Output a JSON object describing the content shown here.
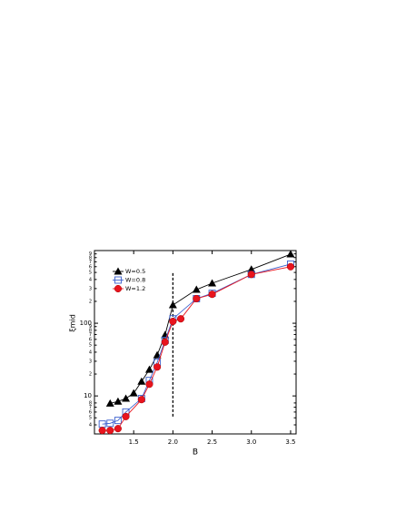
{
  "chart_data": {
    "type": "line",
    "log_y": true,
    "x_label": "B",
    "y_label": "ξmid",
    "xlim": [
      1.0,
      3.57
    ],
    "ylim": [
      3,
      1000
    ],
    "xticks": [
      1.5,
      {
        "value": 2,
        "label": "2.0"
      },
      2.5,
      {
        "value": 3,
        "label": "3.0"
      },
      3.5
    ],
    "yticks": [
      {
        "value": 4,
        "label": "4"
      },
      {
        "value": 5,
        "label": "5"
      },
      {
        "value": 6,
        "label": "6"
      },
      {
        "value": 7,
        "label": "7"
      },
      {
        "value": 8,
        "label": "8"
      },
      10,
      {
        "value": 20,
        "label": "2"
      },
      {
        "value": 30,
        "label": "3"
      },
      {
        "value": 40,
        "label": "4"
      },
      {
        "value": 50,
        "label": "5"
      },
      {
        "value": 60,
        "label": "6"
      },
      {
        "value": 70,
        "label": "7"
      },
      {
        "value": 80,
        "label": "8"
      },
      {
        "value": 90,
        "label": "9"
      },
      100,
      {
        "value": 200,
        "label": "2"
      },
      {
        "value": 300,
        "label": "3"
      },
      {
        "value": 400,
        "label": "4"
      },
      {
        "value": 500,
        "label": "5"
      },
      {
        "value": 600,
        "label": "6"
      },
      {
        "value": 700,
        "label": "7"
      },
      {
        "value": 800,
        "label": "8"
      },
      {
        "value": 900,
        "label": "9"
      }
    ],
    "legend": "upper left",
    "series": [
      {
        "name": "W=0.5",
        "color": "#000000",
        "marker": "triangle",
        "x": [
          1.2,
          1.3,
          1.4,
          1.5,
          1.6,
          1.7,
          1.8,
          1.9,
          2.0,
          2.3,
          2.5,
          3.0,
          3.5
        ],
        "values": [
          7.9,
          8.4,
          9.2,
          10.9,
          15.8,
          23,
          36.5,
          69,
          178,
          290,
          355,
          550,
          890
        ]
      },
      {
        "name": "W=0.8",
        "color": "#3a5fcd",
        "marker": "square",
        "x": [
          1.1,
          1.2,
          1.3,
          1.4,
          1.6,
          1.7,
          1.8,
          1.9,
          2.0,
          2.3,
          2.5,
          3.0,
          3.5
        ],
        "values": [
          4.1,
          4.2,
          4.6,
          6.0,
          9.2,
          16.3,
          29,
          58,
          115,
          218,
          258,
          470,
          650
        ]
      },
      {
        "name": "W=1.2",
        "color": "#e8141e",
        "marker": "circle",
        "x": [
          1.1,
          1.2,
          1.3,
          1.4,
          1.6,
          1.7,
          1.8,
          1.9,
          2.0,
          2.1,
          2.3,
          2.5,
          3.0,
          3.5
        ],
        "values": [
          3.35,
          3.35,
          3.55,
          5.2,
          8.9,
          14.5,
          25,
          55,
          106,
          115,
          218,
          250,
          470,
          600
        ]
      }
    ],
    "vline": {
      "x": 2,
      "y": [
        5.2,
        490
      ]
    }
  }
}
